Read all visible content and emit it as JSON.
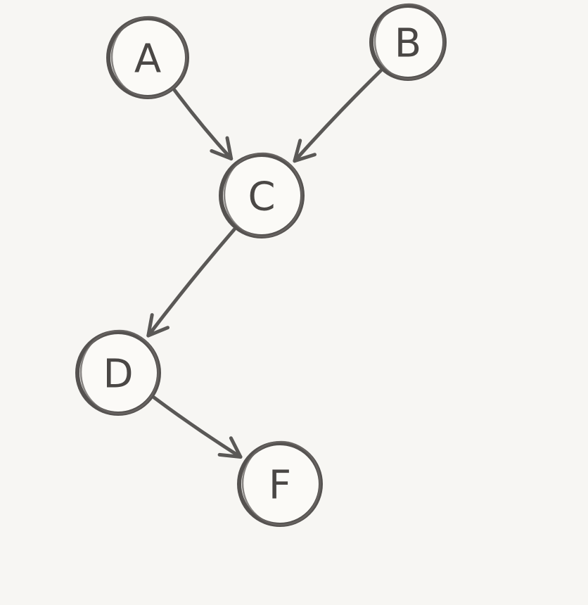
{
  "diagram": {
    "type": "directed-graph",
    "style": "hand-drawn pencil sketch",
    "colors": {
      "ink": "#555250",
      "paper": "#f7f6f3"
    },
    "nodes": [
      {
        "id": "A",
        "label": "A"
      },
      {
        "id": "B",
        "label": "B"
      },
      {
        "id": "C",
        "label": "C"
      },
      {
        "id": "D",
        "label": "D"
      },
      {
        "id": "F",
        "label": "F"
      }
    ],
    "edges": [
      {
        "from": "A",
        "to": "C"
      },
      {
        "from": "B",
        "to": "C"
      },
      {
        "from": "C",
        "to": "D"
      },
      {
        "from": "D",
        "to": "F"
      }
    ]
  }
}
